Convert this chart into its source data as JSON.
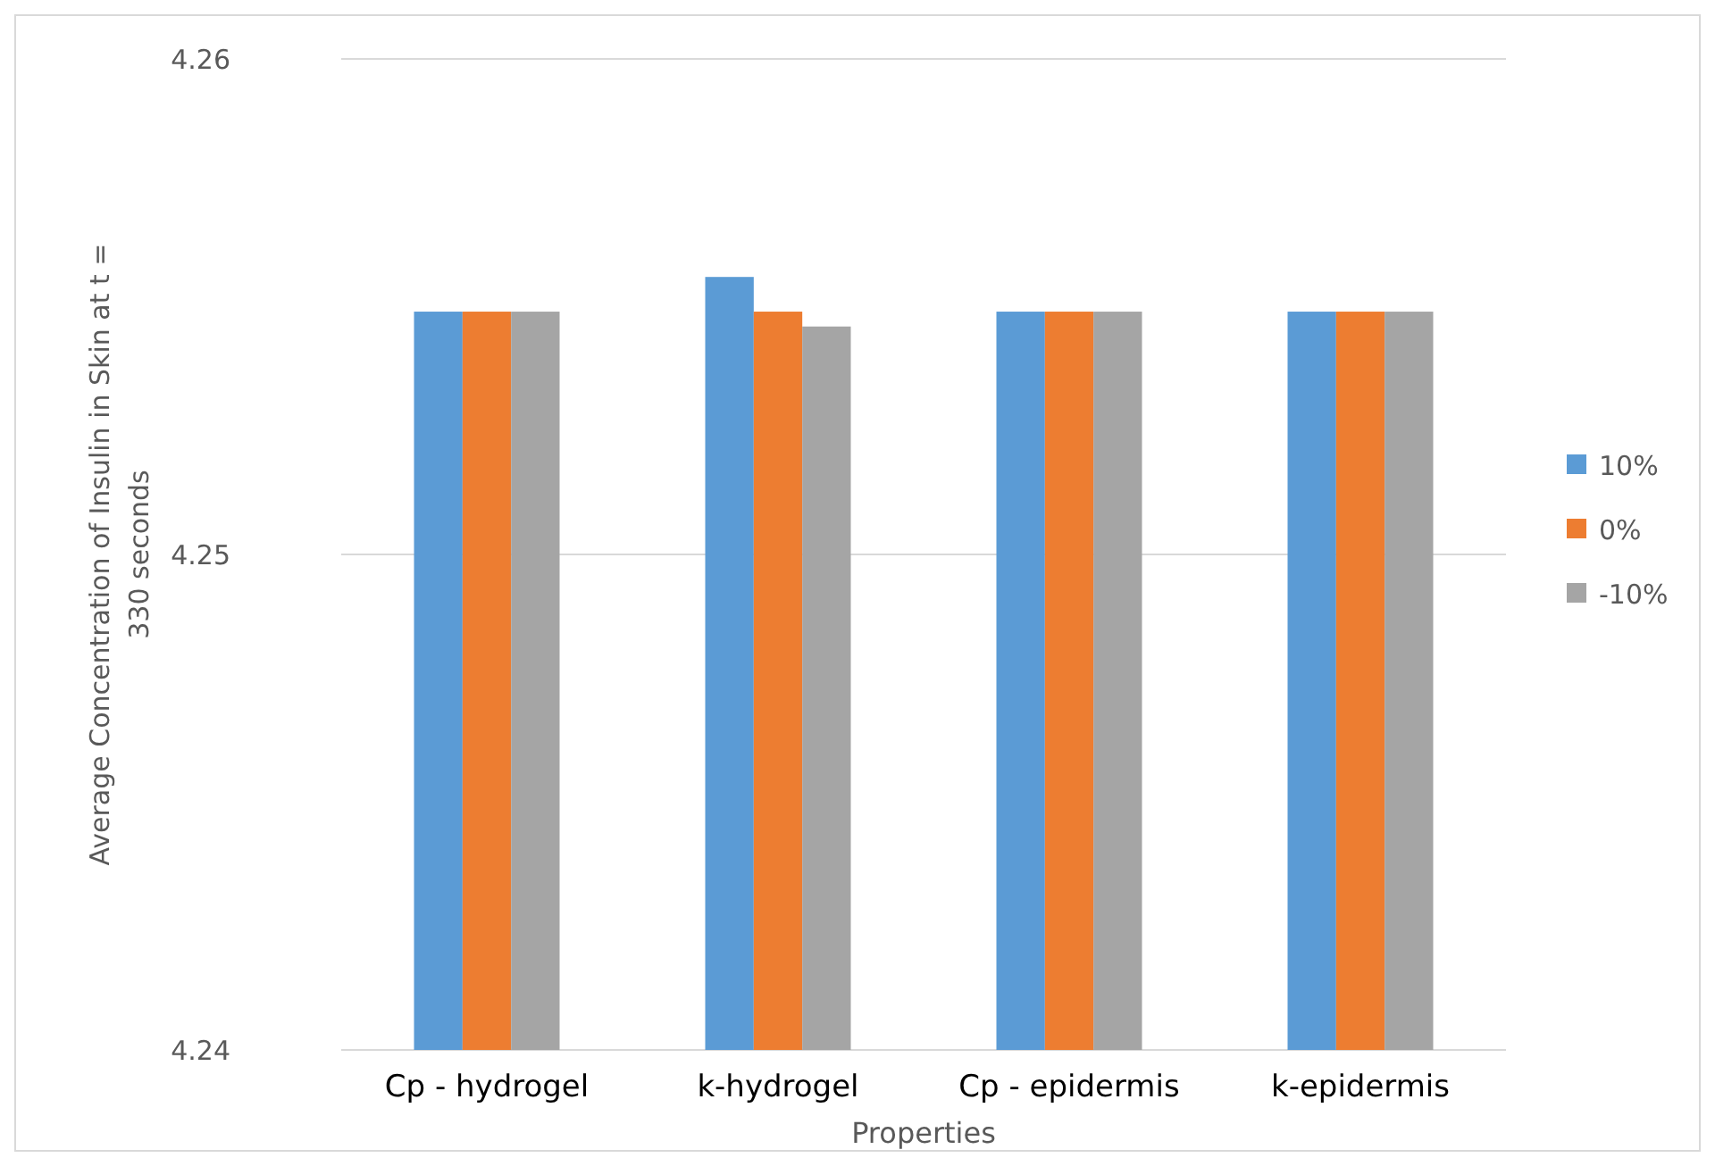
{
  "chart_data": {
    "type": "bar",
    "xlabel": "Properties",
    "ylabel": "Average Concentration of Insulin in Skin at t =\n330 seconds",
    "categories": [
      "Cp - hydrogel",
      "k-hydrogel",
      "Cp - epidermis",
      "k-epidermis"
    ],
    "series": [
      {
        "name": "10%",
        "color": "#5b9bd5",
        "values": [
          4.2549,
          4.2556,
          4.2549,
          4.2549
        ]
      },
      {
        "name": "0%",
        "color": "#ed7d31",
        "values": [
          4.2549,
          4.2549,
          4.2549,
          4.2549
        ]
      },
      {
        "name": "-10%",
        "color": "#a5a5a5",
        "values": [
          4.2549,
          4.2546,
          4.2549,
          4.2549
        ]
      }
    ],
    "ylim": [
      4.24,
      4.26
    ],
    "yticks": [
      4.24,
      4.25,
      4.26
    ],
    "grid": "y",
    "legend": "right"
  }
}
